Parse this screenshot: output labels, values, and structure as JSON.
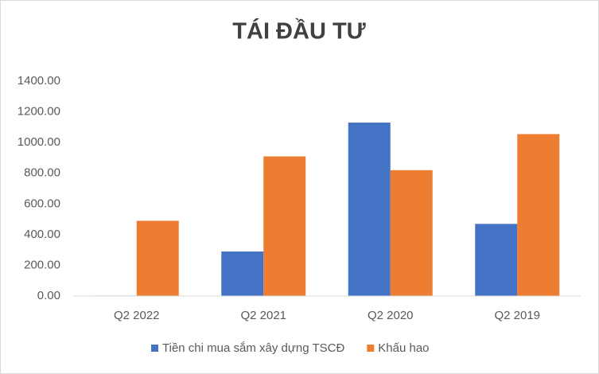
{
  "chart_data": {
    "type": "bar",
    "title": "TÁI ĐẦU TƯ",
    "categories": [
      "Q2 2022",
      "Q2 2021",
      "Q2 2020",
      "Q2 2019"
    ],
    "series": [
      {
        "name": "Tiền chi mua sắm xây dựng TSCĐ",
        "color": "#4472c4",
        "values": [
          3,
          290,
          1130,
          470
        ]
      },
      {
        "name": "Khấu hao",
        "color": "#ed7d31",
        "values": [
          490,
          910,
          820,
          1055
        ]
      }
    ],
    "ylim": [
      0,
      1400
    ],
    "yticks": [
      {
        "value": 0,
        "label": "0.00"
      },
      {
        "value": 200,
        "label": "200.00"
      },
      {
        "value": 400,
        "label": "400.00"
      },
      {
        "value": 600,
        "label": "600.00"
      },
      {
        "value": 800,
        "label": "800.00"
      },
      {
        "value": 1000,
        "label": "1000.00"
      },
      {
        "value": 1200,
        "label": "1200.00"
      },
      {
        "value": 1400,
        "label": "1400.00"
      }
    ],
    "grid": false,
    "legend": "bottom"
  }
}
